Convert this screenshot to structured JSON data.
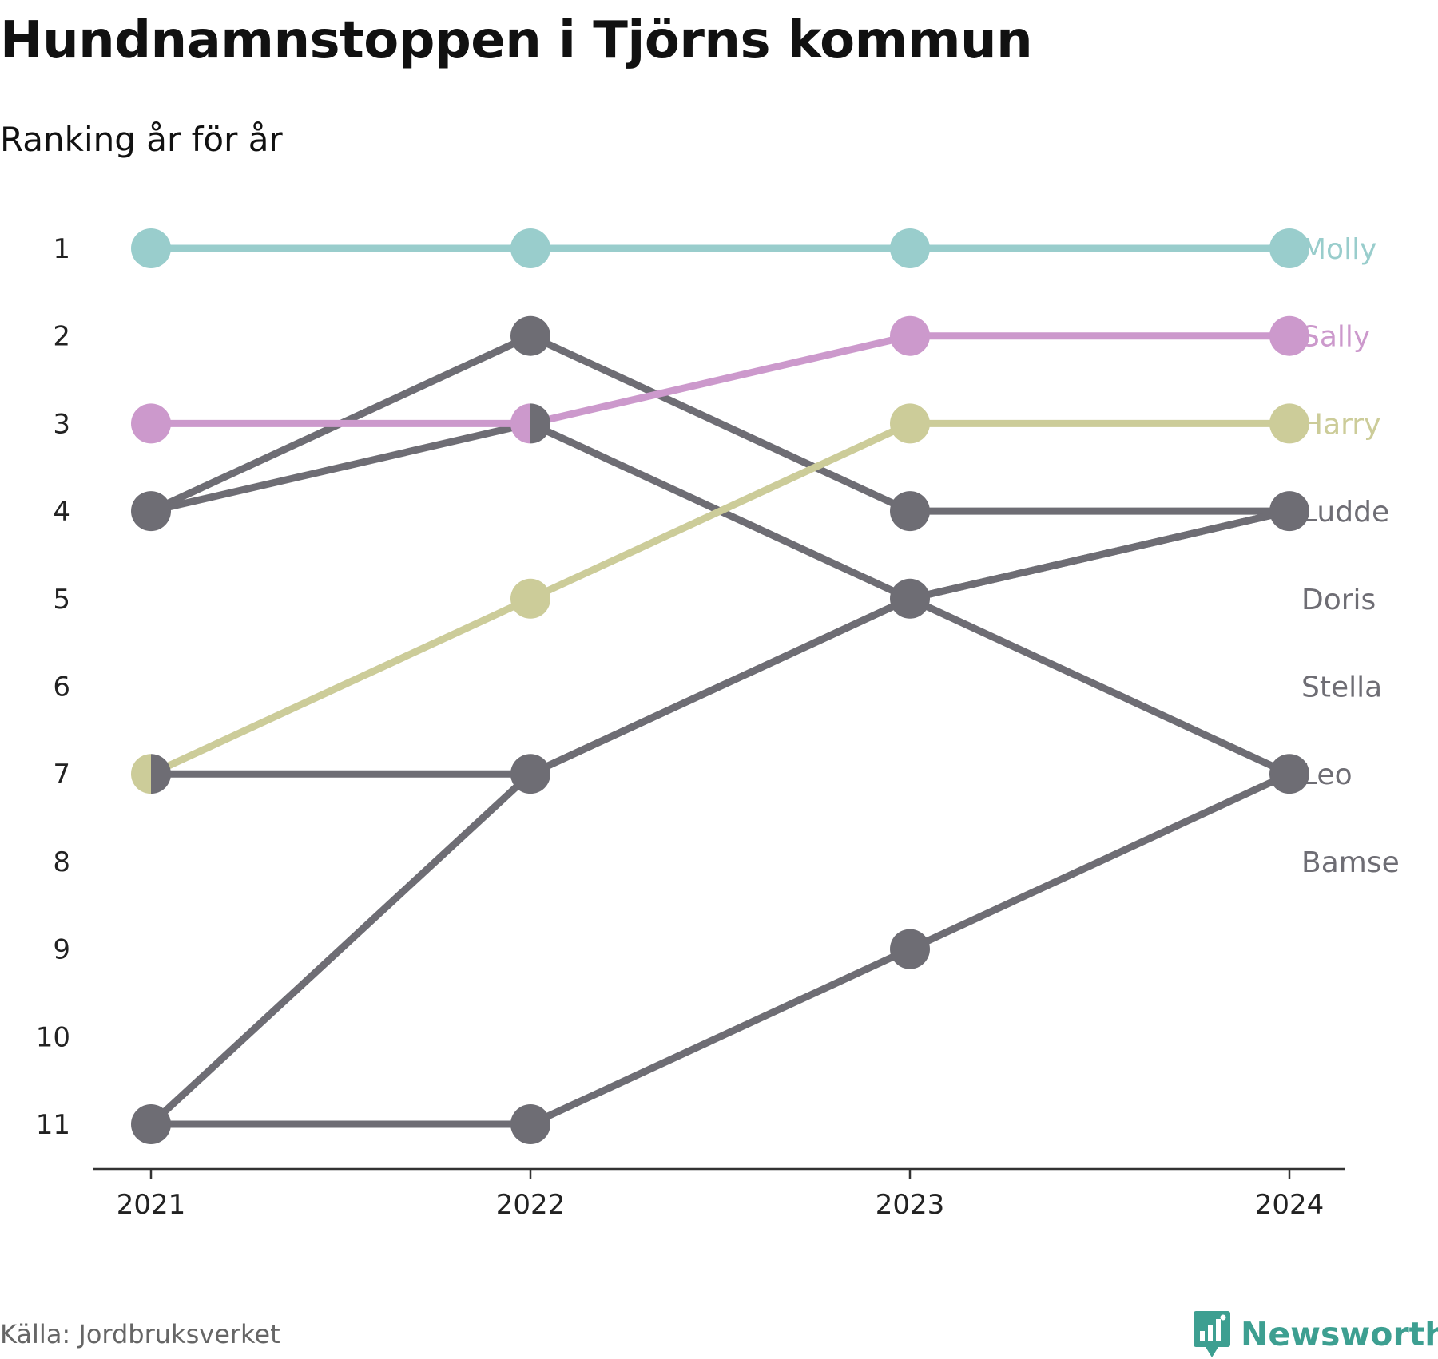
{
  "title": "Hundnamnstoppen i Tjörns kommun",
  "subtitle": "Ranking år för år",
  "source": "Källa: Jordbruksverket",
  "brand": {
    "name": "Newsworthy",
    "icon": "newsworthy-logo-icon",
    "color": "#3d9f91"
  },
  "colors": {
    "Molly": "#99cdcc",
    "Sally": "#cc99cc",
    "Harry": "#cccc99",
    "other": "#6e6d74",
    "axis": "#333333"
  },
  "chart_data": {
    "type": "line",
    "x": [
      "2021",
      "2022",
      "2023",
      "2024"
    ],
    "yticks": [
      1,
      2,
      3,
      4,
      5,
      6,
      7,
      8,
      9,
      10,
      11
    ],
    "ylim": [
      11,
      1
    ],
    "y_inverted": true,
    "grid": false,
    "legend": "end labels",
    "series": [
      {
        "name": "Molly",
        "values": [
          1,
          1,
          1,
          1
        ],
        "highlight": true
      },
      {
        "name": "Sally",
        "values": [
          3,
          3,
          2,
          2
        ],
        "highlight": true
      },
      {
        "name": "Harry",
        "values": [
          7,
          5,
          3,
          3
        ],
        "highlight": true
      },
      {
        "name": "Ludde",
        "values": [
          4,
          2,
          4,
          4
        ],
        "highlight": false
      },
      {
        "name": "Doris",
        "values": [
          null,
          null,
          null,
          null
        ],
        "highlight": false
      },
      {
        "name": "Stella",
        "values": [
          null,
          null,
          null,
          null
        ],
        "highlight": false
      },
      {
        "name": "Leo",
        "values": [
          4,
          3,
          5,
          7
        ],
        "highlight": false
      },
      {
        "name": "Bamse",
        "values": [
          null,
          null,
          null,
          null
        ],
        "highlight": false
      },
      {
        "name": "",
        "values": [
          7,
          7,
          5,
          4
        ],
        "highlight": false
      },
      {
        "name": "",
        "values": [
          11,
          7,
          5,
          4
        ],
        "highlight": false
      },
      {
        "name": "",
        "values": [
          11,
          11,
          9,
          7
        ],
        "highlight": false
      }
    ],
    "end_labels": [
      {
        "text": "Molly",
        "rank": 1
      },
      {
        "text": "Sally",
        "rank": 2
      },
      {
        "text": "Harry",
        "rank": 3
      },
      {
        "text": "Ludde",
        "rank": 4
      },
      {
        "text": "Doris",
        "rank": 5
      },
      {
        "text": "Stella",
        "rank": 6
      },
      {
        "text": "Leo",
        "rank": 7
      },
      {
        "text": "Bamse",
        "rank": 8
      }
    ]
  }
}
